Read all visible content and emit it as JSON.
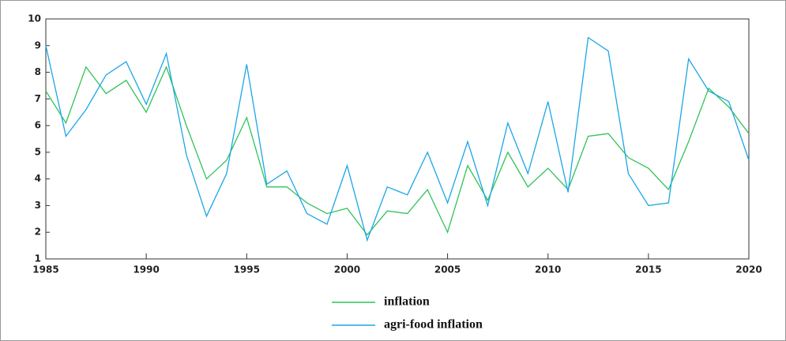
{
  "chart_data": {
    "type": "line",
    "x": [
      1985,
      1986,
      1987,
      1988,
      1989,
      1990,
      1991,
      1992,
      1993,
      1994,
      1995,
      1996,
      1997,
      1998,
      1999,
      2000,
      2001,
      2002,
      2003,
      2004,
      2005,
      2006,
      2007,
      2008,
      2009,
      2010,
      2011,
      2012,
      2013,
      2014,
      2015,
      2016,
      2017,
      2018,
      2019,
      2020
    ],
    "series": [
      {
        "name": "inflation",
        "color": "#2fc35a",
        "values": [
          7.3,
          6.1,
          8.2,
          7.2,
          7.7,
          6.5,
          8.2,
          6.0,
          4.0,
          4.7,
          6.3,
          3.7,
          3.7,
          3.1,
          2.7,
          2.9,
          1.9,
          2.8,
          2.7,
          3.6,
          2.0,
          4.5,
          3.2,
          5.0,
          3.7,
          4.4,
          3.6,
          5.6,
          5.7,
          4.8,
          4.4,
          3.6,
          5.4,
          7.4,
          6.7,
          5.7
        ]
      },
      {
        "name": "agri-food inflation",
        "color": "#1ba6e6",
        "values": [
          9.0,
          5.6,
          6.6,
          7.9,
          8.4,
          6.8,
          8.7,
          4.9,
          2.6,
          4.2,
          8.3,
          3.8,
          4.3,
          2.7,
          2.3,
          4.5,
          1.7,
          3.7,
          3.4,
          5.0,
          3.1,
          5.4,
          3.0,
          6.1,
          4.2,
          6.9,
          3.5,
          9.3,
          8.8,
          4.2,
          3.0,
          3.1,
          8.5,
          7.3,
          6.9,
          4.7
        ]
      }
    ],
    "xlim": [
      1985,
      2020
    ],
    "xticks": [
      1985,
      1990,
      1995,
      2000,
      2005,
      2010,
      2015,
      2020
    ],
    "ylim": [
      1,
      10
    ],
    "yticks": [
      1,
      2,
      3,
      4,
      5,
      6,
      7,
      8,
      9,
      10
    ],
    "legend": "bottom"
  }
}
